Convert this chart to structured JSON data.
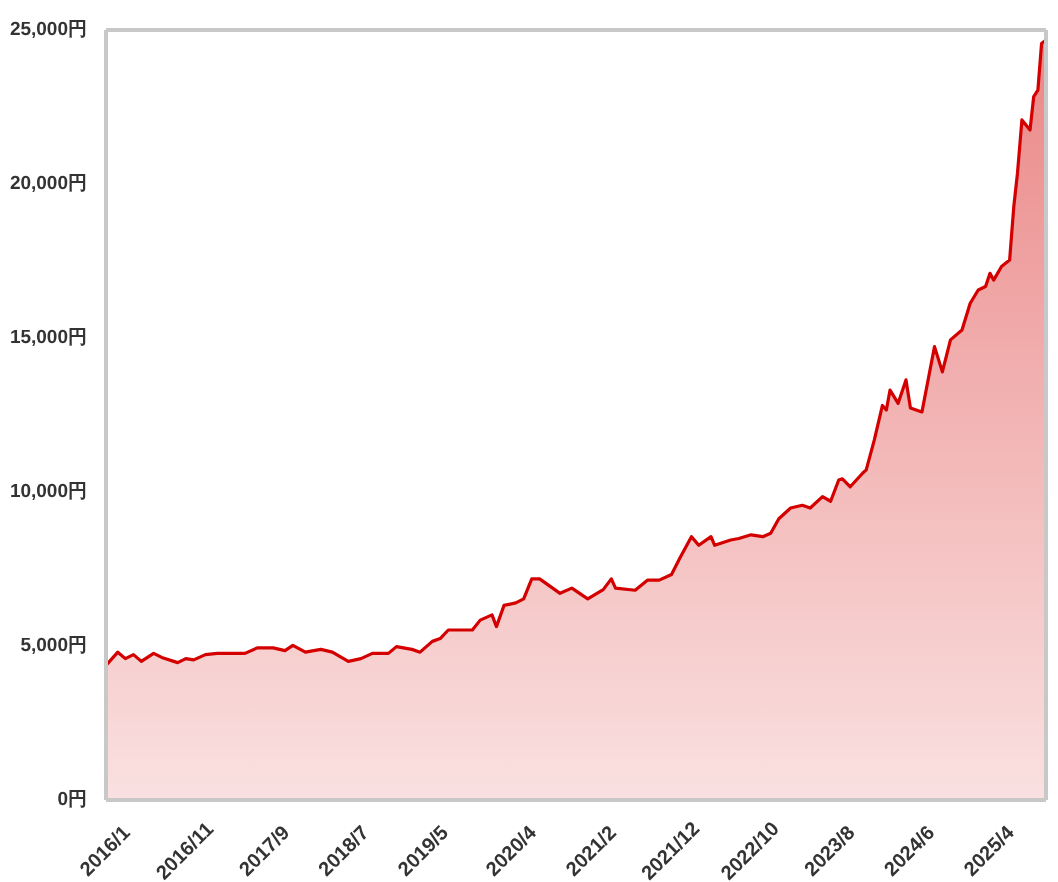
{
  "chart_data": {
    "type": "area",
    "color": "#d40000",
    "x": [
      "2016-01-01",
      "2016-02-15",
      "2016-03-15",
      "2016-04-15",
      "2016-05-15",
      "2016-07-01",
      "2016-08-01",
      "2016-10-01",
      "2016-11-01",
      "2016-12-01",
      "2017-01-15",
      "2017-03-01",
      "2017-05-01",
      "2017-06-15",
      "2017-08-01",
      "2017-10-01",
      "2017-11-15",
      "2017-12-15",
      "2018-02-01",
      "2018-04-01",
      "2018-05-15",
      "2018-07-15",
      "2018-09-01",
      "2018-10-15",
      "2018-12-15",
      "2019-01-15",
      "2019-03-15",
      "2019-04-15",
      "2019-06-01",
      "2019-07-01",
      "2019-08-01",
      "2019-09-15",
      "2019-11-01",
      "2019-12-01",
      "2020-01-15",
      "2020-02-01",
      "2020-03-01",
      "2020-04-15",
      "2020-05-15",
      "2020-06-15",
      "2020-07-15",
      "2020-10-01",
      "2020-11-15",
      "2021-01-15",
      "2021-03-15",
      "2021-04-15",
      "2021-05-01",
      "2021-07-15",
      "2021-09-01",
      "2021-10-15",
      "2021-12-01",
      "2022-01-01",
      "2022-02-15",
      "2022-03-15",
      "2022-05-01",
      "2022-05-15",
      "2022-07-15",
      "2022-08-15",
      "2022-10-01",
      "2022-11-15",
      "2022-12-15",
      "2023-01-15",
      "2023-03-01",
      "2023-04-15",
      "2023-05-15",
      "2023-07-01",
      "2023-08-01",
      "2023-09-01",
      "2023-09-15",
      "2023-10-15",
      "2023-12-01",
      "2023-12-15",
      "2024-01-15",
      "2024-02-15",
      "2024-03-01",
      "2024-03-15",
      "2024-04-15",
      "2024-05-15",
      "2024-06-01",
      "2024-07-15",
      "2024-09-01",
      "2024-10-01",
      "2024-11-01",
      "2024-12-15",
      "2025-01-15",
      "2025-02-15",
      "2025-03-15",
      "2025-04-01",
      "2025-04-15",
      "2025-05-15",
      "2025-06-15",
      "2025-07-01",
      "2025-07-15",
      "2025-08-01",
      "2025-09-01",
      "2025-09-15",
      "2025-10-01",
      "2025-10-15",
      "2025-11-01"
    ],
    "values": [
      4370,
      4800,
      4590,
      4720,
      4500,
      4760,
      4630,
      4460,
      4590,
      4550,
      4720,
      4760,
      4760,
      4760,
      4940,
      4940,
      4850,
      5020,
      4800,
      4890,
      4800,
      4500,
      4590,
      4760,
      4760,
      4980,
      4890,
      4800,
      5150,
      5240,
      5520,
      5520,
      5520,
      5840,
      6010,
      5630,
      6320,
      6400,
      6530,
      7180,
      7180,
      6710,
      6880,
      6530,
      6830,
      7180,
      6880,
      6810,
      7140,
      7140,
      7320,
      7840,
      8550,
      8270,
      8550,
      8270,
      8440,
      8490,
      8610,
      8550,
      8660,
      9130,
      9480,
      9570,
      9480,
      9850,
      9700,
      10390,
      10430,
      10170,
      10610,
      10720,
      11690,
      12810,
      12660,
      13310,
      12880,
      13640,
      12730,
      12600,
      14720,
      13900,
      14940,
      15260,
      16120,
      16560,
      16670,
      17100,
      16880,
      17320,
      17530,
      19270,
      20350,
      22080,
      21750,
      22840,
      23050,
      24560,
      24680
    ],
    "xlim": [
      "2016-01-01",
      "2025-11-01"
    ],
    "xticks": [
      {
        "value": "2016-01",
        "label": "2016/1"
      },
      {
        "value": "2016-11",
        "label": "2016/11"
      },
      {
        "value": "2017-09",
        "label": "2017/9"
      },
      {
        "value": "2018-07",
        "label": "2018/7"
      },
      {
        "value": "2019-05",
        "label": "2019/5"
      },
      {
        "value": "2020-04",
        "label": "2020/4"
      },
      {
        "value": "2021-02",
        "label": "2021/2"
      },
      {
        "value": "2021-12",
        "label": "2021/12"
      },
      {
        "value": "2022-10",
        "label": "2022/10"
      },
      {
        "value": "2023-08",
        "label": "2023/8"
      },
      {
        "value": "2024-06",
        "label": "2024/6"
      },
      {
        "value": "2025-04",
        "label": "2025/4"
      }
    ],
    "ylim": [
      0,
      25000
    ],
    "yticks": [
      {
        "value": 0,
        "label": "0円"
      },
      {
        "value": 5000,
        "label": "5,000円"
      },
      {
        "value": 10000,
        "label": "10,000円"
      },
      {
        "value": 15000,
        "label": "15,000円"
      },
      {
        "value": 20000,
        "label": "20,000円"
      },
      {
        "value": 25000,
        "label": "25,000円"
      }
    ]
  }
}
